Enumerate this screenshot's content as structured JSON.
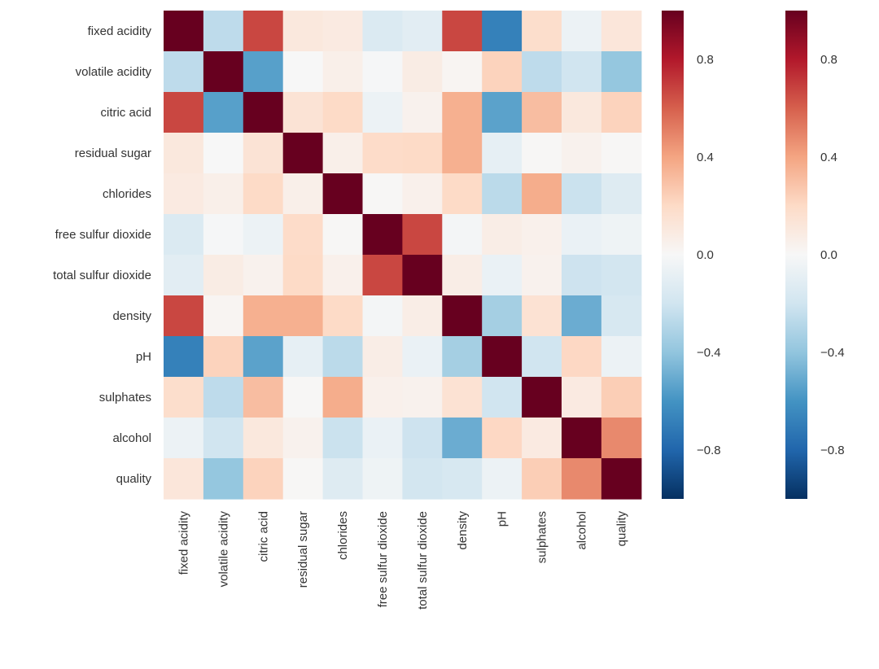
{
  "chart_data": {
    "type": "heatmap",
    "title": "",
    "variables": [
      "fixed acidity",
      "volatile acidity",
      "citric acid",
      "residual sugar",
      "chlorides",
      "free sulfur dioxide",
      "total sulfur dioxide",
      "density",
      "pH",
      "sulphates",
      "alcohol",
      "quality"
    ],
    "matrix": [
      [
        1.0,
        -0.26,
        0.67,
        0.11,
        0.09,
        -0.15,
        -0.11,
        0.67,
        -0.68,
        0.18,
        -0.06,
        0.12
      ],
      [
        -0.26,
        1.0,
        -0.55,
        0.0,
        0.06,
        -0.01,
        0.08,
        0.02,
        0.23,
        -0.26,
        -0.2,
        -0.39
      ],
      [
        0.67,
        -0.55,
        1.0,
        0.14,
        0.2,
        -0.06,
        0.04,
        0.36,
        -0.54,
        0.31,
        0.11,
        0.23
      ],
      [
        0.11,
        0.0,
        0.14,
        1.0,
        0.06,
        0.19,
        0.2,
        0.36,
        -0.09,
        0.01,
        0.04,
        0.01
      ],
      [
        0.09,
        0.06,
        0.2,
        0.06,
        1.0,
        0.01,
        0.05,
        0.2,
        -0.27,
        0.37,
        -0.22,
        -0.13
      ],
      [
        -0.15,
        -0.01,
        -0.06,
        0.19,
        0.01,
        1.0,
        0.67,
        -0.02,
        0.07,
        0.05,
        -0.07,
        -0.05
      ],
      [
        -0.11,
        0.08,
        0.04,
        0.2,
        0.05,
        0.67,
        1.0,
        0.07,
        -0.07,
        0.04,
        -0.21,
        -0.19
      ],
      [
        0.67,
        0.02,
        0.36,
        0.36,
        0.2,
        -0.02,
        0.07,
        1.0,
        -0.34,
        0.15,
        -0.5,
        -0.17
      ],
      [
        -0.68,
        0.23,
        -0.54,
        -0.09,
        -0.27,
        0.07,
        -0.07,
        -0.34,
        1.0,
        -0.2,
        0.21,
        -0.06
      ],
      [
        0.18,
        -0.26,
        0.31,
        0.01,
        0.37,
        0.05,
        0.04,
        0.15,
        -0.2,
        1.0,
        0.09,
        0.25
      ],
      [
        -0.06,
        -0.2,
        0.11,
        0.04,
        -0.22,
        -0.07,
        -0.21,
        -0.5,
        0.21,
        0.09,
        1.0,
        0.48
      ],
      [
        0.12,
        -0.39,
        0.23,
        0.01,
        -0.13,
        -0.05,
        -0.19,
        -0.17,
        -0.06,
        0.25,
        0.48,
        1.0
      ]
    ],
    "vmin": -1,
    "vmax": 1,
    "colormap": [
      "#053061",
      "#2166ac",
      "#4393c3",
      "#92c5de",
      "#d1e5f0",
      "#f7f7f7",
      "#fddbc7",
      "#f4a582",
      "#d6604d",
      "#b2182b",
      "#67001f"
    ],
    "colorbar_ticks": [
      0.8,
      0.4,
      0.0,
      -0.4,
      -0.8
    ],
    "colorbar_tick_labels": [
      "0.8",
      "0.4",
      "0.0",
      "−0.4",
      "−0.8"
    ],
    "colorbar_count": 2
  }
}
